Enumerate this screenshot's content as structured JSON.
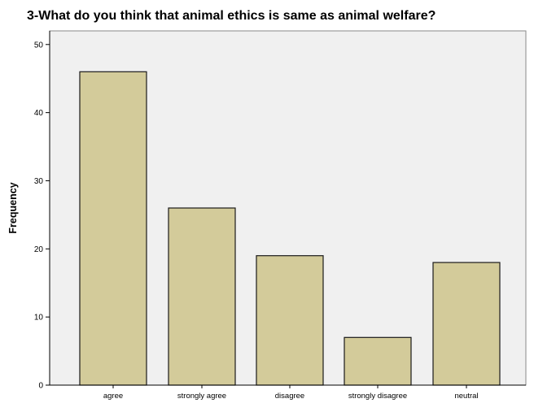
{
  "chart_data": {
    "type": "bar",
    "title": "3-What do you think that animal ethics is same as animal welfare?",
    "xlabel": "",
    "ylabel": "Frequency",
    "categories": [
      "agree",
      "strongly agree",
      "disagree",
      "strongly disagree",
      "neutral"
    ],
    "values": [
      46,
      26,
      19,
      7,
      18
    ],
    "ylim": [
      0,
      52
    ],
    "yticks": [
      0,
      10,
      20,
      30,
      40,
      50
    ],
    "grid": false,
    "legend": "none",
    "colors": {
      "bar_fill": "#D3CB9A",
      "bar_stroke": "#1A1A1A",
      "plot_background": "#F0F0F0"
    }
  }
}
